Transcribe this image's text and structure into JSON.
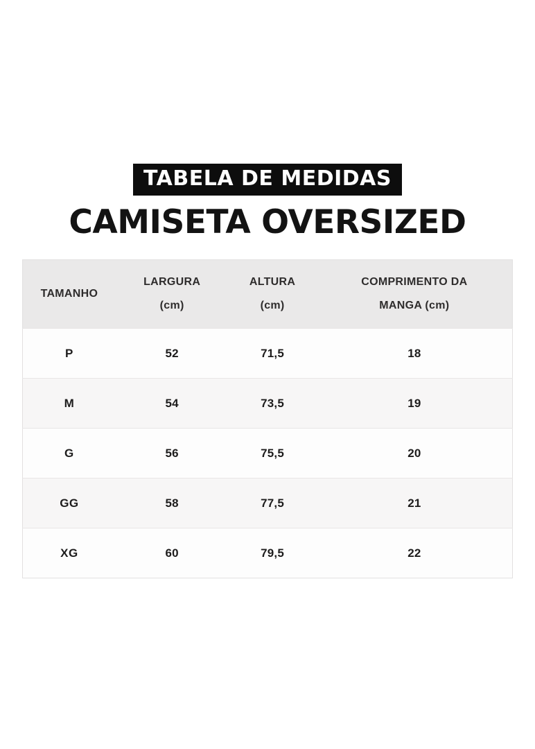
{
  "header": {
    "banner_label": "TABELA DE MEDIDAS",
    "title": "CAMISETA OVERSIZED"
  },
  "table": {
    "columns": [
      {
        "line1": "TAMANHO",
        "line2": ""
      },
      {
        "line1": "LARGURA",
        "line2": "(cm)"
      },
      {
        "line1": "ALTURA",
        "line2": "(cm)"
      },
      {
        "line1": "COMPRIMENTO DA",
        "line2": "MANGA (cm)"
      }
    ],
    "rows": [
      {
        "size": "P",
        "largura": "52",
        "altura": "71,5",
        "manga": "18"
      },
      {
        "size": "M",
        "largura": "54",
        "altura": "73,5",
        "manga": "19"
      },
      {
        "size": "G",
        "largura": "56",
        "altura": "75,5",
        "manga": "20"
      },
      {
        "size": "GG",
        "largura": "58",
        "altura": "77,5",
        "manga": "21"
      },
      {
        "size": "XG",
        "largura": "60",
        "altura": "79,5",
        "manga": "22"
      }
    ]
  },
  "colors": {
    "page_bg": "#ffffff",
    "banner_bg": "#0d0d0d",
    "banner_text": "#ffffff",
    "title_text": "#131313",
    "table_header_bg": "#eae9e9",
    "row_bg": "#fdfdfd",
    "row_alt_bg": "#f7f6f6",
    "table_border": "#e2e0e0",
    "row_divider": "#e8e6e6",
    "header_text": "#2e2c2c",
    "table_text": "#1d1c1c"
  },
  "chart_data": {
    "type": "table",
    "title": "CAMISETA OVERSIZED",
    "subtitle": "TABELA DE MEDIDAS",
    "columns": [
      "TAMANHO",
      "LARGURA (cm)",
      "ALTURA (cm)",
      "COMPRIMENTO DA MANGA (cm)"
    ],
    "rows": [
      [
        "P",
        "52",
        "71,5",
        "18"
      ],
      [
        "M",
        "54",
        "73,5",
        "19"
      ],
      [
        "G",
        "56",
        "75,5",
        "20"
      ],
      [
        "GG",
        "58",
        "77,5",
        "21"
      ],
      [
        "XG",
        "60",
        "79,5",
        "22"
      ]
    ]
  }
}
